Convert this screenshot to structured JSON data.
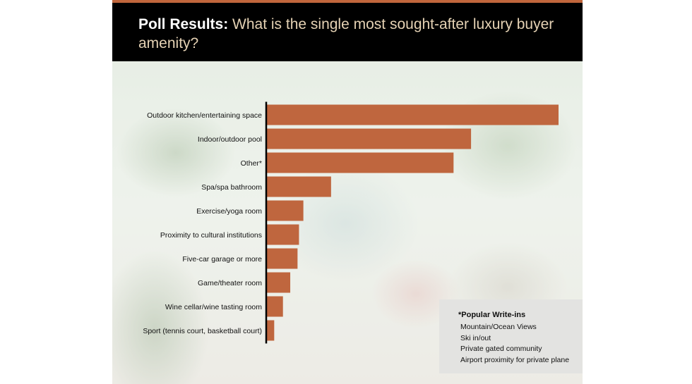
{
  "title": {
    "strong": "Poll Results:",
    "rest": " What is the single most sought-after luxury buyer amenity?"
  },
  "colors": {
    "bar": "#bf663e",
    "stripe": "#c0663c",
    "header_bg": "#000000",
    "title_strong": "#ffffff",
    "title_rest": "#e5d2b4",
    "writeins_bg": "#e3e3e1"
  },
  "chart_data": {
    "type": "bar",
    "orientation": "horizontal",
    "categories": [
      "Outdoor kitchen/entertaining space",
      "Indoor/outdoor pool",
      "Other*",
      "Spa/spa bathroom",
      "Exercise/yoga room",
      "Proximity to cultural institutions",
      "Five-car garage or more",
      "Game/theater room",
      "Wine cellar/wine tasting room",
      "Sport (tennis court, basketball court)"
    ],
    "values": [
      100,
      70,
      64,
      22,
      12.5,
      11,
      10.5,
      8,
      5.5,
      2.5
    ],
    "xlim": [
      0,
      100
    ],
    "grid": false,
    "legend": "none"
  },
  "writeins": {
    "title": "*Popular Write-ins",
    "items": [
      "Mountain/Ocean Views",
      "Ski in/out",
      "Private gated community",
      "Airport proximity for private plane"
    ]
  }
}
